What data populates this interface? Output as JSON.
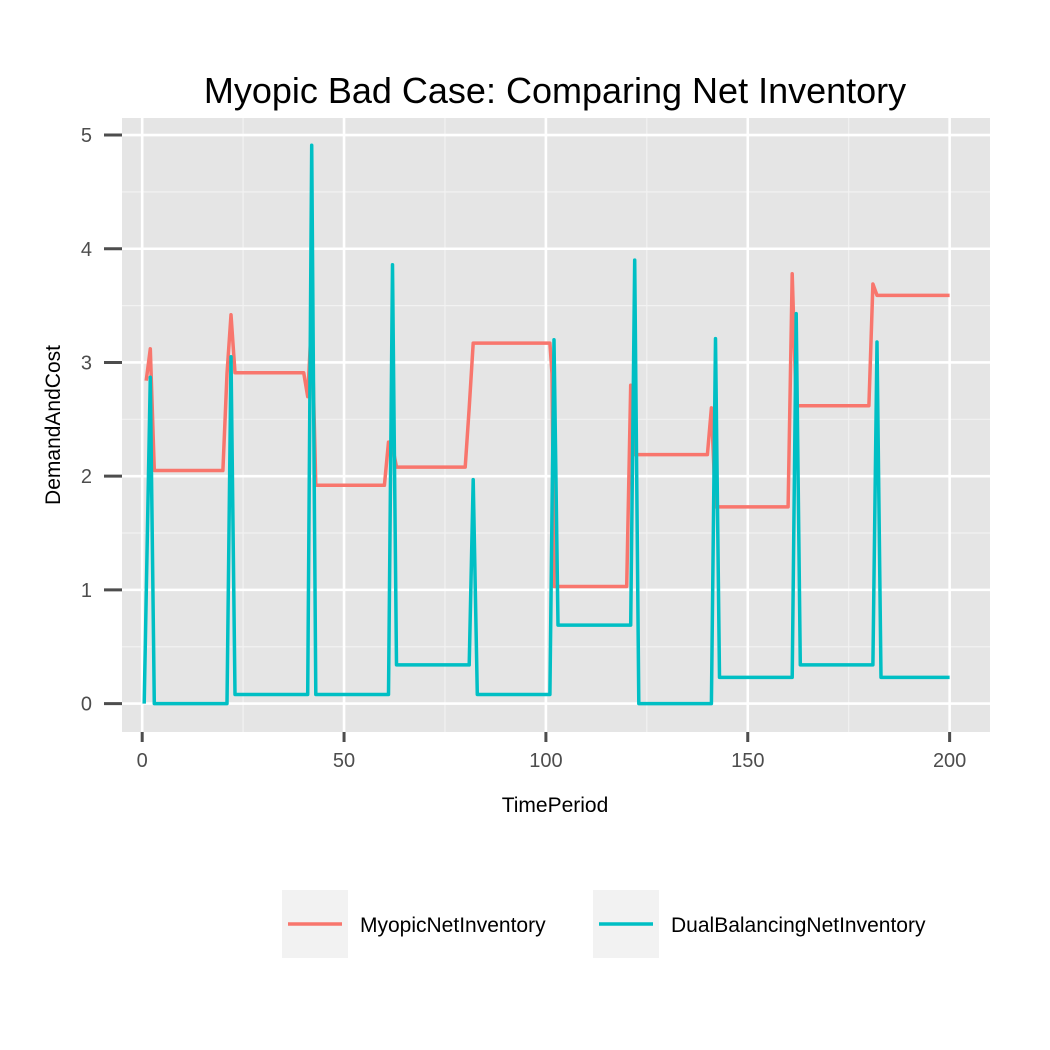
{
  "chart_data": {
    "type": "line",
    "title": "Myopic Bad Case: Comparing Net Inventory",
    "xlabel": "TimePeriod",
    "ylabel": "DemandAndCost",
    "xlim": [
      -5,
      210
    ],
    "ylim": [
      -0.25,
      5.15
    ],
    "x_ticks": [
      0,
      50,
      100,
      150,
      200
    ],
    "y_ticks": [
      0,
      1,
      2,
      3,
      4,
      5
    ],
    "x_tick_labels": [
      "0",
      "50",
      "100",
      "150",
      "200"
    ],
    "y_tick_labels": [
      "0",
      "1",
      "2",
      "3",
      "4",
      "5"
    ],
    "grid": true,
    "legend_position": "bottom",
    "series": [
      {
        "name": "MyopicNetInventory",
        "color": "#F8766D",
        "points": [
          [
            1,
            2.84
          ],
          [
            2,
            3.12
          ],
          [
            3,
            2.05
          ],
          [
            20,
            2.05
          ],
          [
            21,
            2.9
          ],
          [
            22,
            3.42
          ],
          [
            23,
            2.91
          ],
          [
            40,
            2.91
          ],
          [
            41,
            2.7
          ],
          [
            42,
            3.4
          ],
          [
            43,
            1.92
          ],
          [
            60,
            1.92
          ],
          [
            61,
            2.3
          ],
          [
            62,
            2.26
          ],
          [
            63,
            2.08
          ],
          [
            80,
            2.08
          ],
          [
            81,
            2.6
          ],
          [
            82,
            3.17
          ],
          [
            101,
            3.17
          ],
          [
            101.5,
            2.9
          ],
          [
            102,
            1.03
          ],
          [
            120,
            1.03
          ],
          [
            121,
            2.8
          ],
          [
            122,
            2.19
          ],
          [
            140,
            2.19
          ],
          [
            141,
            2.6
          ],
          [
            142,
            1.73
          ],
          [
            160,
            1.73
          ],
          [
            161,
            3.78
          ],
          [
            162,
            2.62
          ],
          [
            180,
            2.62
          ],
          [
            181,
            3.69
          ],
          [
            182,
            3.59
          ],
          [
            200,
            3.59
          ]
        ]
      },
      {
        "name": "DualBalancingNetInventory",
        "color": "#00BFC4",
        "points": [
          [
            0.5,
            0
          ],
          [
            2,
            2.87
          ],
          [
            3,
            0
          ],
          [
            21,
            0
          ],
          [
            22,
            3.05
          ],
          [
            23,
            0.08
          ],
          [
            41,
            0.08
          ],
          [
            42,
            4.91
          ],
          [
            43,
            0.08
          ],
          [
            61,
            0.08
          ],
          [
            62,
            3.86
          ],
          [
            63,
            0.34
          ],
          [
            81,
            0.34
          ],
          [
            82,
            1.97
          ],
          [
            83,
            0.08
          ],
          [
            101,
            0.08
          ],
          [
            102,
            3.2
          ],
          [
            103,
            0.69
          ],
          [
            121,
            0.69
          ],
          [
            122,
            3.9
          ],
          [
            123,
            0
          ],
          [
            141,
            0
          ],
          [
            142,
            3.21
          ],
          [
            143,
            0.23
          ],
          [
            161,
            0.23
          ],
          [
            162,
            3.43
          ],
          [
            163,
            0.34
          ],
          [
            181,
            0.34
          ],
          [
            182,
            3.18
          ],
          [
            183,
            0.23
          ],
          [
            200,
            0.23
          ]
        ]
      }
    ]
  }
}
